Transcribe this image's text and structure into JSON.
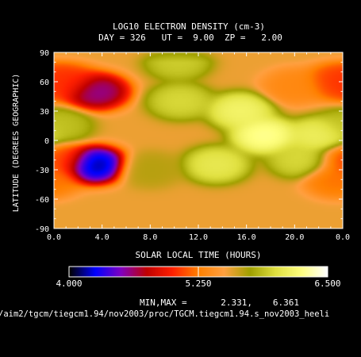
{
  "chart_data": {
    "type": "heatmap",
    "title": "LOG10 ELECTRON DENSITY (cm-3)",
    "subtitle": "DAY = 326   UT =  9.00  ZP =   2.00",
    "xlabel": "SOLAR LOCAL TIME (HOURS)",
    "ylabel": "LATITUDE (DEGREES GEOGRAPHIC)",
    "xlim": [
      0.0,
      24.0
    ],
    "ylim": [
      -90,
      90
    ],
    "x_ticks": [
      "0.0",
      "4.0",
      "8.0",
      "12.0",
      "16.0",
      "20.0",
      "0.0"
    ],
    "x_tick_values": [
      0,
      4,
      8,
      12,
      16,
      20,
      24
    ],
    "y_ticks": [
      "90",
      "60",
      "30",
      "0",
      "-30",
      "-60",
      "-90"
    ],
    "y_tick_values": [
      90,
      60,
      30,
      0,
      -30,
      -60,
      -90
    ],
    "colorbar": {
      "min_label": "4.000",
      "mid_label": "5.250",
      "max_label": "6.500",
      "min": 4.0,
      "max": 6.5,
      "colors": [
        "#000000",
        "#0000ff",
        "#8000c0",
        "#c00000",
        "#ff2000",
        "#ff8000",
        "#ffa040",
        "#a0a000",
        "#e0e040",
        "#ffff80",
        "#ffffff"
      ]
    },
    "minmax_label": "MIN,MAX =",
    "min_value": "2.331,",
    "max_value": "6.361",
    "features": [
      {
        "x": 1.0,
        "y": 60,
        "value": 5.0
      },
      {
        "x": 3.5,
        "y": 50,
        "value": 4.5
      },
      {
        "x": 3.3,
        "y": -25,
        "value": 4.05
      },
      {
        "x": 0.5,
        "y": -20,
        "value": 5.1
      },
      {
        "x": 0.5,
        "y": 15,
        "value": 5.9
      },
      {
        "x": 10.3,
        "y": 80,
        "value": 5.95
      },
      {
        "x": 10.5,
        "y": 40,
        "value": 6.0
      },
      {
        "x": 15.5,
        "y": 30,
        "value": 6.2
      },
      {
        "x": 17.5,
        "y": 5,
        "value": 6.33
      },
      {
        "x": 13.5,
        "y": -25,
        "value": 6.1
      },
      {
        "x": 22.0,
        "y": 5,
        "value": 6.15
      },
      {
        "x": 20.5,
        "y": -20,
        "value": 6.0
      },
      {
        "x": 23.5,
        "y": 60,
        "value": 5.05
      },
      {
        "x": 20.0,
        "y": 55,
        "value": 5.3
      },
      {
        "x": 23.5,
        "y": -40,
        "value": 5.2
      },
      {
        "x": 8.0,
        "y": -30,
        "value": 5.7
      }
    ],
    "background_value": 5.55
  },
  "footer": {
    "path": "/aim2/tgcm/tiegcm1.94/nov2003/proc/TGCM.tiegcm1.94.s_nov2003_heeli"
  }
}
